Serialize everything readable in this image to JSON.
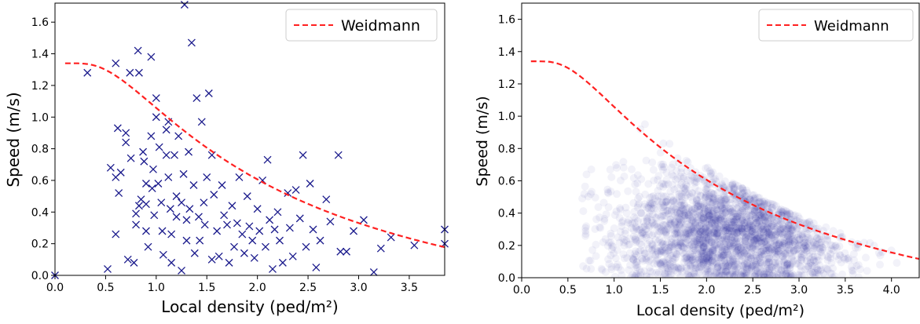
{
  "chart_data": [
    {
      "type": "scatter",
      "title": "",
      "xlabel": "Local density (ped/m²)",
      "ylabel": "Speed (m/s)",
      "xlim": [
        0.0,
        3.85
      ],
      "ylim": [
        0.0,
        1.72
      ],
      "xticks": [
        "0.0",
        "0.5",
        "1.0",
        "1.5",
        "2.0",
        "2.5",
        "3.0",
        "3.5"
      ],
      "yticks": [
        "0.0",
        "0.2",
        "0.4",
        "0.6",
        "0.8",
        "1.0",
        "1.2",
        "1.4",
        "1.6"
      ],
      "legend": {
        "placement": "top-right",
        "entries": [
          "Weidmann"
        ]
      },
      "grid": false,
      "marker": "x",
      "colors": {
        "points": "#1a1a8c",
        "curve": "#ff2020"
      },
      "series": [
        {
          "kind": "scatter",
          "points": [
            [
              0.0,
              0.0
            ],
            [
              0.32,
              1.28
            ],
            [
              0.52,
              0.04
            ],
            [
              0.55,
              0.68
            ],
            [
              0.6,
              1.34
            ],
            [
              0.62,
              0.93
            ],
            [
              0.63,
              0.52
            ],
            [
              0.6,
              0.26
            ],
            [
              0.6,
              0.62
            ],
            [
              0.65,
              0.65
            ],
            [
              0.7,
              0.9
            ],
            [
              0.7,
              0.84
            ],
            [
              0.72,
              0.1
            ],
            [
              0.74,
              1.28
            ],
            [
              0.75,
              0.74
            ],
            [
              0.78,
              0.08
            ],
            [
              0.8,
              0.39
            ],
            [
              0.8,
              0.32
            ],
            [
              0.82,
              1.42
            ],
            [
              0.83,
              1.28
            ],
            [
              0.83,
              0.44
            ],
            [
              0.85,
              0.48
            ],
            [
              0.87,
              0.78
            ],
            [
              0.88,
              0.72
            ],
            [
              0.9,
              0.45
            ],
            [
              0.9,
              0.58
            ],
            [
              0.9,
              0.28
            ],
            [
              0.92,
              0.18
            ],
            [
              0.95,
              1.38
            ],
            [
              0.95,
              0.88
            ],
            [
              0.96,
              0.55
            ],
            [
              0.97,
              0.67
            ],
            [
              0.98,
              0.38
            ],
            [
              1.0,
              1.12
            ],
            [
              1.0,
              1.0
            ],
            [
              1.02,
              0.58
            ],
            [
              1.03,
              0.81
            ],
            [
              1.05,
              0.46
            ],
            [
              1.06,
              0.28
            ],
            [
              1.07,
              0.13
            ],
            [
              1.1,
              0.92
            ],
            [
              1.1,
              0.76
            ],
            [
              1.12,
              0.97
            ],
            [
              1.12,
              0.62
            ],
            [
              1.14,
              0.42
            ],
            [
              1.15,
              0.26
            ],
            [
              1.15,
              0.08
            ],
            [
              1.18,
              0.76
            ],
            [
              1.2,
              0.5
            ],
            [
              1.2,
              0.37
            ],
            [
              1.22,
              0.88
            ],
            [
              1.25,
              0.46
            ],
            [
              1.25,
              0.03
            ],
            [
              1.27,
              0.64
            ],
            [
              1.28,
              1.71
            ],
            [
              1.3,
              0.35
            ],
            [
              1.3,
              0.22
            ],
            [
              1.32,
              0.78
            ],
            [
              1.33,
              0.42
            ],
            [
              1.35,
              1.47
            ],
            [
              1.37,
              0.57
            ],
            [
              1.38,
              0.14
            ],
            [
              1.4,
              1.12
            ],
            [
              1.42,
              0.37
            ],
            [
              1.43,
              0.22
            ],
            [
              1.45,
              0.97
            ],
            [
              1.47,
              0.46
            ],
            [
              1.48,
              0.32
            ],
            [
              1.5,
              0.62
            ],
            [
              1.52,
              1.15
            ],
            [
              1.55,
              0.76
            ],
            [
              1.55,
              0.1
            ],
            [
              1.57,
              0.51
            ],
            [
              1.6,
              0.28
            ],
            [
              1.62,
              0.12
            ],
            [
              1.65,
              0.57
            ],
            [
              1.67,
              0.38
            ],
            [
              1.7,
              0.32
            ],
            [
              1.72,
              0.08
            ],
            [
              1.75,
              0.44
            ],
            [
              1.77,
              0.18
            ],
            [
              1.8,
              0.33
            ],
            [
              1.82,
              0.62
            ],
            [
              1.85,
              0.26
            ],
            [
              1.87,
              0.14
            ],
            [
              1.9,
              0.5
            ],
            [
              1.92,
              0.31
            ],
            [
              1.95,
              0.22
            ],
            [
              1.97,
              0.11
            ],
            [
              2.0,
              0.42
            ],
            [
              2.02,
              0.28
            ],
            [
              2.05,
              0.6
            ],
            [
              2.08,
              0.18
            ],
            [
              2.1,
              0.73
            ],
            [
              2.12,
              0.35
            ],
            [
              2.15,
              0.04
            ],
            [
              2.17,
              0.29
            ],
            [
              2.2,
              0.4
            ],
            [
              2.22,
              0.22
            ],
            [
              2.25,
              0.08
            ],
            [
              2.3,
              0.52
            ],
            [
              2.32,
              0.3
            ],
            [
              2.35,
              0.12
            ],
            [
              2.38,
              0.54
            ],
            [
              2.42,
              0.36
            ],
            [
              2.45,
              0.76
            ],
            [
              2.48,
              0.18
            ],
            [
              2.52,
              0.58
            ],
            [
              2.55,
              0.29
            ],
            [
              2.58,
              0.05
            ],
            [
              2.62,
              0.22
            ],
            [
              2.68,
              0.48
            ],
            [
              2.72,
              0.34
            ],
            [
              2.8,
              0.76
            ],
            [
              2.82,
              0.15
            ],
            [
              2.88,
              0.15
            ],
            [
              2.95,
              0.28
            ],
            [
              3.05,
              0.35
            ],
            [
              3.15,
              0.02
            ],
            [
              3.22,
              0.17
            ],
            [
              3.32,
              0.24
            ],
            [
              3.55,
              0.19
            ],
            [
              3.85,
              0.29
            ],
            [
              3.85,
              0.2
            ]
          ]
        },
        {
          "kind": "curve",
          "name": "Weidmann",
          "style": "dashed",
          "x_range": [
            0.1,
            3.85
          ]
        }
      ]
    },
    {
      "type": "scatter",
      "title": "",
      "xlabel": "Local density (ped/m²)",
      "ylabel": "Speed (m/s)",
      "xlim": [
        0.0,
        4.3
      ],
      "ylim": [
        0.0,
        1.7
      ],
      "xticks": [
        "0.0",
        "0.5",
        "1.0",
        "1.5",
        "2.0",
        "2.5",
        "3.0",
        "3.5",
        "4.0"
      ],
      "yticks": [
        "0.0",
        "0.2",
        "0.4",
        "0.6",
        "0.8",
        "1.0",
        "1.2",
        "1.4",
        "1.6"
      ],
      "legend": {
        "placement": "top-right",
        "entries": [
          "Weidmann"
        ]
      },
      "grid": false,
      "marker": "o-transparent",
      "colors": {
        "points": "#00008b",
        "curve": "#ff2020"
      },
      "series": [
        {
          "kind": "density-cloud",
          "x_extent": [
            0.65,
            4.1
          ],
          "y_extent": [
            0.0,
            1.45
          ],
          "peak": [
            2.2,
            0.3
          ]
        },
        {
          "kind": "curve",
          "name": "Weidmann",
          "style": "dashed",
          "x_range": [
            0.1,
            4.3
          ]
        }
      ]
    }
  ]
}
